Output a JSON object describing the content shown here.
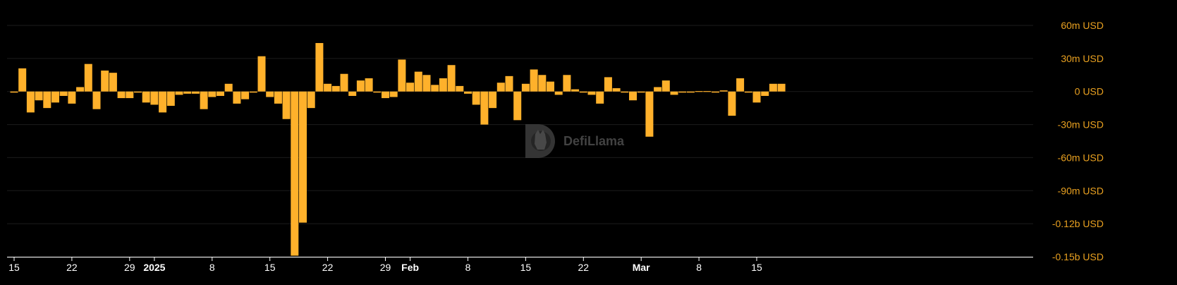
{
  "chart_data": {
    "type": "bar",
    "title": "",
    "xlabel": "",
    "ylabel": "",
    "colors": {
      "bar": "#FFB12B",
      "background": "#000000",
      "grid": "#1c1c1c",
      "axis": "#ffffff"
    },
    "grid": true,
    "ylim": [
      -150,
      60
    ],
    "y_unit": "m USD",
    "y_ticks": [
      {
        "value": 60,
        "label": "60m USD"
      },
      {
        "value": 30,
        "label": "30m USD"
      },
      {
        "value": 0,
        "label": "0 USD"
      },
      {
        "value": -30,
        "label": "-30m USD"
      },
      {
        "value": -60,
        "label": "-60m USD"
      },
      {
        "value": -90,
        "label": "-90m USD"
      },
      {
        "value": -120,
        "label": "-0.12b USD"
      },
      {
        "value": -150,
        "label": "-0.15b USD"
      }
    ],
    "x_ticks": [
      {
        "index": 0,
        "label": "15",
        "bold": false
      },
      {
        "index": 7,
        "label": "22",
        "bold": false
      },
      {
        "index": 14,
        "label": "29",
        "bold": false
      },
      {
        "index": 17,
        "label": "2025",
        "bold": true
      },
      {
        "index": 24,
        "label": "8",
        "bold": false
      },
      {
        "index": 31,
        "label": "15",
        "bold": false
      },
      {
        "index": 38,
        "label": "22",
        "bold": false
      },
      {
        "index": 45,
        "label": "29",
        "bold": false
      },
      {
        "index": 48,
        "label": "Feb",
        "bold": true
      },
      {
        "index": 55,
        "label": "8",
        "bold": false
      },
      {
        "index": 62,
        "label": "15",
        "bold": false
      },
      {
        "index": 69,
        "label": "22",
        "bold": false
      },
      {
        "index": 76,
        "label": "Mar",
        "bold": true
      },
      {
        "index": 83,
        "label": "8",
        "bold": false
      },
      {
        "index": 90,
        "label": "15",
        "bold": false
      }
    ],
    "values": [
      -1,
      21,
      -19,
      -8,
      -15,
      -10,
      -4,
      -11,
      4,
      25,
      -16,
      19,
      17,
      -6,
      -6,
      -1,
      -10,
      -12,
      -19,
      -13,
      -3,
      -2,
      -2,
      -16,
      -5,
      -4,
      7,
      -11,
      -7,
      -1,
      32,
      -5,
      -11,
      -25,
      -149,
      -119,
      -15,
      44,
      7,
      5,
      16,
      -4,
      10,
      12,
      -1,
      -6,
      -5,
      29,
      8,
      18,
      15,
      6,
      12,
      24,
      5,
      -2,
      -12,
      -30,
      -15,
      8,
      14,
      -26,
      7,
      20,
      15,
      9,
      -3,
      15,
      2,
      -1,
      -3,
      -11,
      13,
      3,
      -1,
      -8,
      -1,
      -41,
      4,
      10,
      -3,
      -1,
      -1,
      0,
      0,
      -1,
      1,
      -22,
      12,
      -1,
      -10,
      -4,
      7,
      7
    ],
    "watermark": "DefiLlama"
  }
}
